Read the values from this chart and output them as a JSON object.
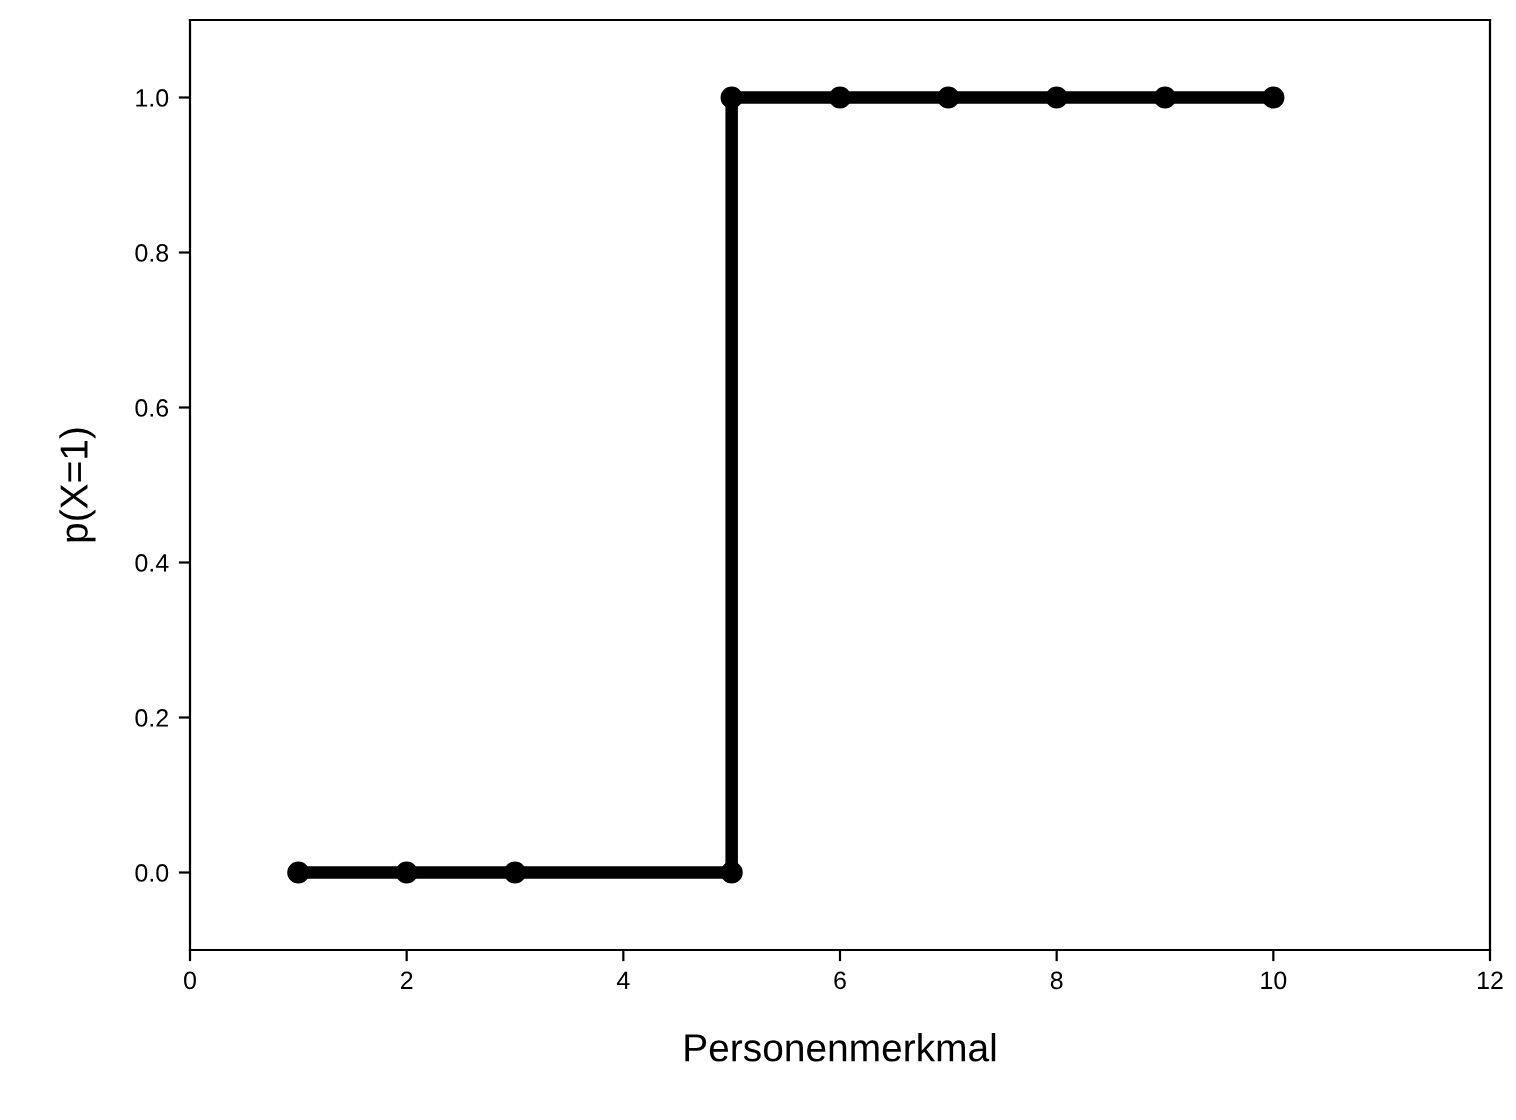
{
  "chart_data": {
    "type": "line",
    "xlabel": "Personenmerkmal",
    "ylabel": "p(X=1)",
    "x": [
      1,
      2,
      3,
      5,
      5,
      6,
      7,
      8,
      9,
      10
    ],
    "series": [
      {
        "color": "#000000",
        "values": [
          0,
          0,
          0,
          0,
          1,
          1,
          1,
          1,
          1,
          1
        ]
      }
    ],
    "marker": "circle",
    "line_style": "solid",
    "grid": false,
    "xlim": [
      0,
      12
    ],
    "xticks": [
      0,
      2,
      4,
      6,
      8,
      10,
      12
    ],
    "ylim": [
      -0.1,
      1.1
    ],
    "yticks": [
      {
        "value": 0,
        "label": "0.0"
      },
      {
        "value": 0.2,
        "label": "0.2"
      },
      {
        "value": 0.4,
        "label": "0.4"
      },
      {
        "value": 0.6,
        "label": "0.6"
      },
      {
        "value": 0.8,
        "label": "0.8"
      },
      {
        "value": 1,
        "label": "1.0"
      }
    ]
  }
}
